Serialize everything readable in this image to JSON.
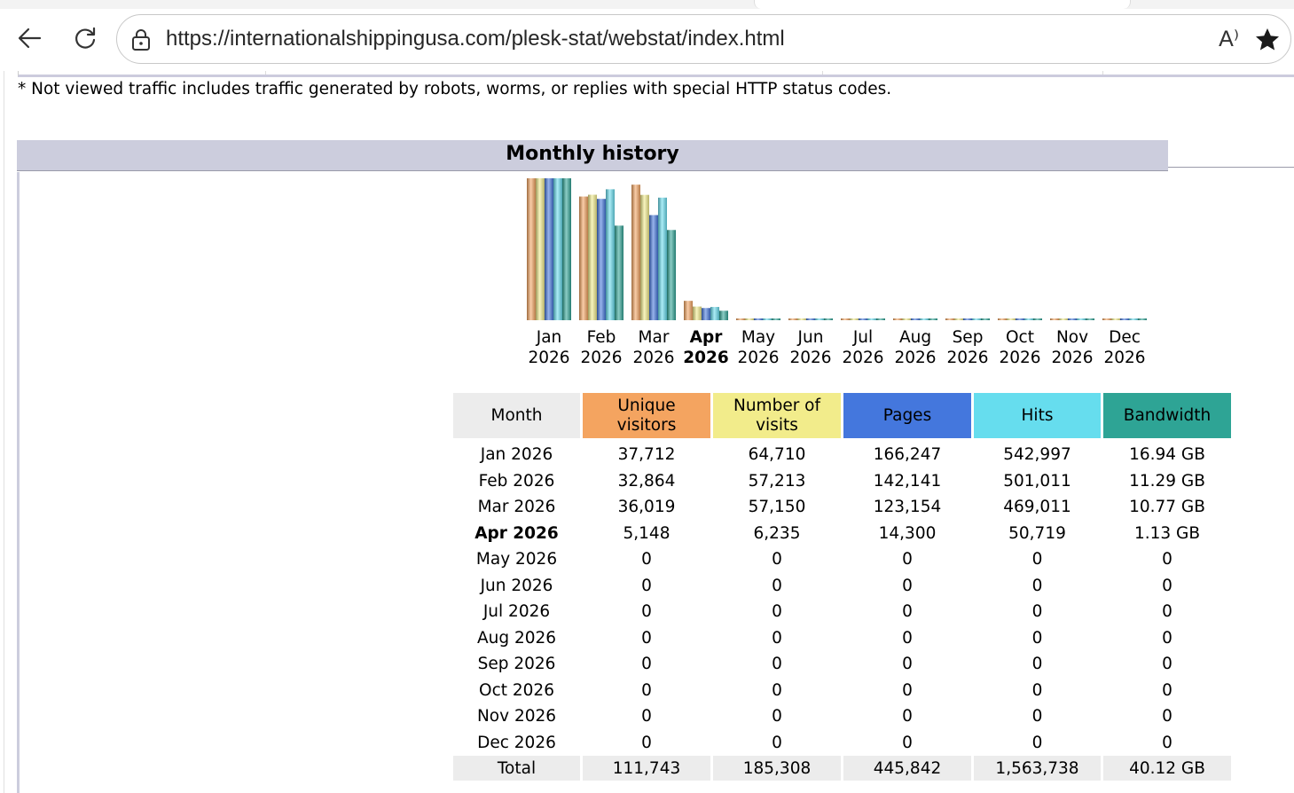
{
  "browser": {
    "url": "https://internationalshippingusa.com/plesk-stat/webstat/index.html",
    "read_aloud_label": "A⁾"
  },
  "page": {
    "note": "* Not viewed traffic includes traffic generated by robots, worms, or replies with special HTTP status codes.",
    "section_title": "Monthly history"
  },
  "colors": {
    "unique": "#f4a460",
    "visits": "#f2ec8b",
    "pages": "#4477dd",
    "hits": "#66ddee",
    "bandwidth": "#2ea495",
    "header_bg": "#cccddd"
  },
  "chart_data": {
    "type": "bar",
    "categories": [
      {
        "month": "Jan",
        "year": "2026",
        "bold": false
      },
      {
        "month": "Feb",
        "year": "2026",
        "bold": false
      },
      {
        "month": "Mar",
        "year": "2026",
        "bold": false
      },
      {
        "month": "Apr",
        "year": "2026",
        "bold": true
      },
      {
        "month": "May",
        "year": "2026",
        "bold": false
      },
      {
        "month": "Jun",
        "year": "2026",
        "bold": false
      },
      {
        "month": "Jul",
        "year": "2026",
        "bold": false
      },
      {
        "month": "Aug",
        "year": "2026",
        "bold": false
      },
      {
        "month": "Sep",
        "year": "2026",
        "bold": false
      },
      {
        "month": "Oct",
        "year": "2026",
        "bold": false
      },
      {
        "month": "Nov",
        "year": "2026",
        "bold": false
      },
      {
        "month": "Dec",
        "year": "2026",
        "bold": false
      }
    ],
    "series": [
      {
        "key": "unique",
        "values": [
          37712,
          32864,
          36019,
          5148,
          0,
          0,
          0,
          0,
          0,
          0,
          0,
          0
        ]
      },
      {
        "key": "visits",
        "values": [
          64710,
          57213,
          57150,
          6235,
          0,
          0,
          0,
          0,
          0,
          0,
          0,
          0
        ]
      },
      {
        "key": "pages",
        "values": [
          166247,
          142141,
          123154,
          14300,
          0,
          0,
          0,
          0,
          0,
          0,
          0,
          0
        ]
      },
      {
        "key": "hits",
        "values": [
          542997,
          501011,
          469011,
          50719,
          0,
          0,
          0,
          0,
          0,
          0,
          0,
          0
        ]
      },
      {
        "key": "bandwidth_gb",
        "values": [
          16.94,
          11.29,
          10.77,
          1.13,
          0,
          0,
          0,
          0,
          0,
          0,
          0,
          0
        ]
      }
    ]
  },
  "table": {
    "headers": [
      {
        "label": "Month",
        "bg": "#ececec",
        "color": "#000000"
      },
      {
        "label": "Unique visitors",
        "bg": "#f4a460",
        "color": "#000000"
      },
      {
        "label": "Number of visits",
        "bg": "#f2ec8b",
        "color": "#000000"
      },
      {
        "label": "Pages",
        "bg": "#4477dd",
        "color": "#000000"
      },
      {
        "label": "Hits",
        "bg": "#66ddee",
        "color": "#000000"
      },
      {
        "label": "Bandwidth",
        "bg": "#2ea495",
        "color": "#000000"
      }
    ],
    "rows": [
      {
        "month": "Jan 2026",
        "unique": "37,712",
        "visits": "64,710",
        "pages": "166,247",
        "hits": "542,997",
        "bandwidth": "16.94 GB",
        "bold": false
      },
      {
        "month": "Feb 2026",
        "unique": "32,864",
        "visits": "57,213",
        "pages": "142,141",
        "hits": "501,011",
        "bandwidth": "11.29 GB",
        "bold": false
      },
      {
        "month": "Mar 2026",
        "unique": "36,019",
        "visits": "57,150",
        "pages": "123,154",
        "hits": "469,011",
        "bandwidth": "10.77 GB",
        "bold": false
      },
      {
        "month": "Apr 2026",
        "unique": "5,148",
        "visits": "6,235",
        "pages": "14,300",
        "hits": "50,719",
        "bandwidth": "1.13 GB",
        "bold": true
      },
      {
        "month": "May 2026",
        "unique": "0",
        "visits": "0",
        "pages": "0",
        "hits": "0",
        "bandwidth": "0",
        "bold": false
      },
      {
        "month": "Jun 2026",
        "unique": "0",
        "visits": "0",
        "pages": "0",
        "hits": "0",
        "bandwidth": "0",
        "bold": false
      },
      {
        "month": "Jul 2026",
        "unique": "0",
        "visits": "0",
        "pages": "0",
        "hits": "0",
        "bandwidth": "0",
        "bold": false
      },
      {
        "month": "Aug 2026",
        "unique": "0",
        "visits": "0",
        "pages": "0",
        "hits": "0",
        "bandwidth": "0",
        "bold": false
      },
      {
        "month": "Sep 2026",
        "unique": "0",
        "visits": "0",
        "pages": "0",
        "hits": "0",
        "bandwidth": "0",
        "bold": false
      },
      {
        "month": "Oct 2026",
        "unique": "0",
        "visits": "0",
        "pages": "0",
        "hits": "0",
        "bandwidth": "0",
        "bold": false
      },
      {
        "month": "Nov 2026",
        "unique": "0",
        "visits": "0",
        "pages": "0",
        "hits": "0",
        "bandwidth": "0",
        "bold": false
      },
      {
        "month": "Dec 2026",
        "unique": "0",
        "visits": "0",
        "pages": "0",
        "hits": "0",
        "bandwidth": "0",
        "bold": false
      }
    ],
    "total": {
      "month": "Total",
      "unique": "111,743",
      "visits": "185,308",
      "pages": "445,842",
      "hits": "1,563,738",
      "bandwidth": "40.12 GB"
    }
  }
}
